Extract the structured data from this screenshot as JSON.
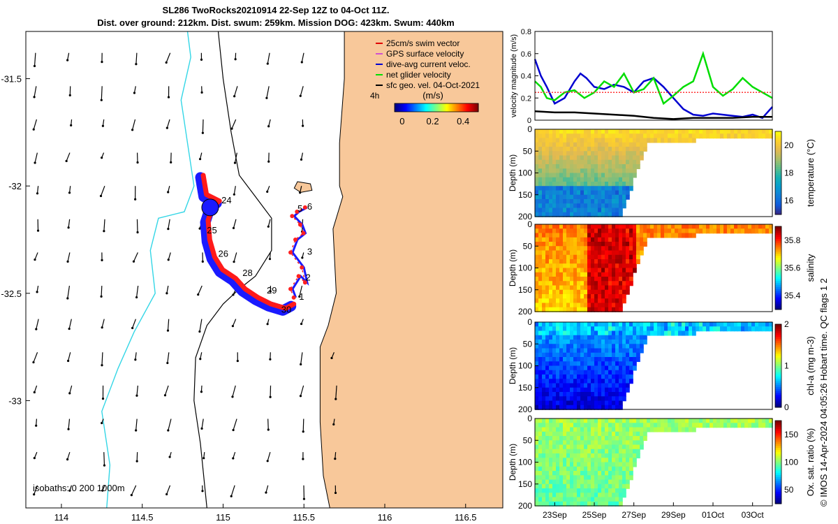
{
  "title_line1": "SL286 TwoRocks20210914 22-Sep 12Z to 04-Oct 11Z.",
  "title_line2": "Dist. over ground: 212km. Dist. swum: 259km. Mission DOG: 423km. Swum: 440km",
  "side_note": "© IMOS 14-Apr-2024 04:05:26 Hobart time. QC flags 1  2",
  "chart_data": [
    {
      "type": "map",
      "x_ticks": [
        "114",
        "114.5",
        "115",
        "115.5",
        "116",
        "116.5"
      ],
      "x_tick_values": [
        114,
        114.5,
        115,
        115.5,
        116,
        116.5
      ],
      "y_ticks": [
        "-31.5",
        "-32",
        "-32.5",
        "-33"
      ],
      "y_tick_values": [
        -31.5,
        -32,
        -32.5,
        -33
      ],
      "xlim": [
        113.78,
        116.73
      ],
      "ylim": [
        -33.5,
        -31.28
      ],
      "land_color": "#f8c89a",
      "legend": [
        {
          "label": "25cm/s swim vector",
          "color": "#e00000"
        },
        {
          "label": "GPS surface velocity",
          "color": "#d050d0"
        },
        {
          "label": "dive-avg current veloc.",
          "color": "#0000d0"
        },
        {
          "label": "net glider velocity",
          "color": "#00e000"
        },
        {
          "label": "sfc geo. vel. 04-Oct-2021",
          "color": "#000000"
        }
      ],
      "legend_symbol": "4h",
      "colorbar": {
        "label": "(m/s)",
        "ticks": [
          "0",
          "0.2",
          "0.4"
        ],
        "tick_values": [
          0,
          0.2,
          0.4
        ],
        "range": [
          -0.05,
          0.5
        ]
      },
      "isobaths_label": "isobaths: 0   200  1000m",
      "track": [
        [
          115.45,
          -32.52
        ],
        [
          115.43,
          -32.48
        ],
        [
          115.48,
          -32.42
        ],
        [
          115.52,
          -32.45
        ],
        [
          115.5,
          -32.38
        ],
        [
          115.43,
          -32.31
        ],
        [
          115.46,
          -32.25
        ],
        [
          115.51,
          -32.22
        ],
        [
          115.49,
          -32.18
        ],
        [
          115.44,
          -32.14
        ],
        [
          115.47,
          -32.12
        ],
        [
          115.52,
          -32.1
        ]
      ],
      "main_track": [
        [
          115.42,
          -32.56
        ],
        [
          115.37,
          -32.58
        ],
        [
          115.28,
          -32.56
        ],
        [
          115.2,
          -32.53
        ],
        [
          115.12,
          -32.49
        ],
        [
          115.06,
          -32.44
        ],
        [
          115.02,
          -32.42
        ],
        [
          114.98,
          -32.4
        ],
        [
          114.93,
          -32.34
        ],
        [
          114.9,
          -32.26
        ],
        [
          114.89,
          -32.17
        ],
        [
          114.92,
          -32.1
        ],
        [
          114.96,
          -32.08
        ],
        [
          114.88,
          -32.05
        ],
        [
          114.86,
          -31.96
        ]
      ],
      "track_labels": [
        {
          "text": "1",
          "lon": 115.47,
          "lat": -32.53
        },
        {
          "text": "2",
          "lon": 115.51,
          "lat": -32.44
        },
        {
          "text": "3",
          "lon": 115.52,
          "lat": -32.32
        },
        {
          "text": "5",
          "lon": 115.46,
          "lat": -32.12
        },
        {
          "text": "6",
          "lon": 115.52,
          "lat": -32.11
        },
        {
          "text": "24",
          "lon": 114.99,
          "lat": -32.08
        },
        {
          "text": "25",
          "lon": 114.9,
          "lat": -32.22
        },
        {
          "text": "26",
          "lon": 114.97,
          "lat": -32.33
        },
        {
          "text": "28",
          "lon": 115.12,
          "lat": -32.42
        },
        {
          "text": "29",
          "lon": 115.27,
          "lat": -32.5
        },
        {
          "text": "30",
          "lon": 115.36,
          "lat": -32.59
        }
      ],
      "coast": [
        [
          115.75,
          -31.28
        ],
        [
          115.75,
          -31.5
        ],
        [
          115.72,
          -31.8
        ],
        [
          115.72,
          -32.0
        ],
        [
          115.74,
          -32.05
        ],
        [
          115.68,
          -32.2
        ],
        [
          115.7,
          -32.5
        ],
        [
          115.65,
          -32.65
        ],
        [
          115.6,
          -32.75
        ],
        [
          115.6,
          -33.1
        ],
        [
          115.62,
          -33.35
        ],
        [
          115.66,
          -33.5
        ]
      ],
      "island": [
        [
          115.46,
          -31.98
        ],
        [
          115.54,
          -31.99
        ],
        [
          115.55,
          -32.02
        ],
        [
          115.48,
          -32.03
        ],
        [
          115.44,
          -32.01
        ]
      ],
      "isobath_200": [
        [
          114.97,
          -31.28
        ],
        [
          115.0,
          -31.5
        ],
        [
          115.05,
          -31.75
        ],
        [
          115.1,
          -31.95
        ],
        [
          115.2,
          -32.05
        ],
        [
          115.3,
          -32.15
        ],
        [
          115.3,
          -32.3
        ],
        [
          115.2,
          -32.42
        ],
        [
          115.1,
          -32.48
        ],
        [
          115.0,
          -32.55
        ],
        [
          114.9,
          -32.65
        ],
        [
          114.83,
          -32.8
        ],
        [
          114.82,
          -33.0
        ],
        [
          114.86,
          -33.2
        ],
        [
          114.9,
          -33.5
        ]
      ],
      "isobath_1000": [
        [
          114.78,
          -31.28
        ],
        [
          114.8,
          -31.4
        ],
        [
          114.74,
          -31.6
        ],
        [
          114.78,
          -31.8
        ],
        [
          114.82,
          -32.0
        ],
        [
          114.76,
          -32.12
        ],
        [
          114.6,
          -32.15
        ],
        [
          114.55,
          -32.3
        ],
        [
          114.58,
          -32.5
        ],
        [
          114.45,
          -32.68
        ],
        [
          114.35,
          -32.85
        ],
        [
          114.25,
          -33.05
        ],
        [
          114.3,
          -33.3
        ],
        [
          114.28,
          -33.5
        ]
      ]
    },
    {
      "type": "line",
      "ylabel": "velocity magnitude (m/s)",
      "ylim": [
        0,
        0.8
      ],
      "y_ticks": [
        "0",
        "0.2",
        "0.4",
        "0.6",
        "0.8"
      ],
      "y_tick_values": [
        0,
        0.2,
        0.4,
        0.6,
        0.8
      ],
      "xlim": [
        0,
        12
      ],
      "series": [
        {
          "color": "#0000d0",
          "x": [
            0,
            0.3,
            0.6,
            1,
            1.5,
            2,
            2.3,
            2.6,
            3,
            3.5,
            4,
            4.5,
            5,
            5.5,
            6,
            6.5,
            7,
            7.5,
            8,
            8.5,
            9,
            9.5,
            10,
            10.5,
            11,
            11.5,
            12
          ],
          "y": [
            0.55,
            0.4,
            0.3,
            0.15,
            0.2,
            0.35,
            0.42,
            0.38,
            0.3,
            0.28,
            0.32,
            0.3,
            0.25,
            0.35,
            0.38,
            0.3,
            0.2,
            0.1,
            0.05,
            0.04,
            0.06,
            0.05,
            0.04,
            0.03,
            0.05,
            0.02,
            0.12
          ]
        },
        {
          "color": "#00dd00",
          "x": [
            0,
            0.3,
            0.6,
            1,
            1.5,
            2,
            2.5,
            3,
            3.5,
            4,
            4.5,
            5,
            5.5,
            6,
            6.5,
            7,
            7.5,
            8,
            8.5,
            9,
            9.5,
            10,
            10.5,
            11,
            11.5,
            12
          ],
          "y": [
            0.35,
            0.3,
            0.2,
            0.18,
            0.25,
            0.27,
            0.2,
            0.25,
            0.35,
            0.3,
            0.42,
            0.25,
            0.28,
            0.38,
            0.15,
            0.22,
            0.3,
            0.35,
            0.6,
            0.3,
            0.22,
            0.28,
            0.38,
            0.3,
            0.25,
            0.2
          ]
        },
        {
          "color": "#000000",
          "x": [
            0,
            1,
            2,
            3,
            4,
            5,
            6,
            7,
            8,
            9,
            10,
            11,
            12
          ],
          "y": [
            0.08,
            0.07,
            0.07,
            0.06,
            0.05,
            0.04,
            0.02,
            0.01,
            0.02,
            0.02,
            0.02,
            0.03,
            0.03
          ]
        },
        {
          "color": "#ff3333",
          "x": [
            0,
            12
          ],
          "y": [
            0.25,
            0.25
          ]
        }
      ]
    },
    {
      "type": "heatmap",
      "name_key": "temperature",
      "ylabel": "Depth (m)",
      "ylim": [
        0,
        200
      ],
      "y_ticks": [
        "0",
        "50",
        "100",
        "150",
        "200"
      ],
      "y_tick_values": [
        0,
        50,
        100,
        150,
        200
      ],
      "colorbar_label": "temperature (°C)",
      "colorbar_ticks": [
        "16",
        "18",
        "20"
      ],
      "colorbar_tick_values": [
        16,
        18,
        20
      ],
      "crange": [
        15,
        21
      ],
      "colormap": "parula",
      "surface": 20.5,
      "deep": 17.0
    },
    {
      "type": "heatmap",
      "name_key": "salinity",
      "ylabel": "Depth (m)",
      "ylim": [
        0,
        200
      ],
      "y_ticks": [
        "0",
        "50",
        "100",
        "150",
        "200"
      ],
      "y_tick_values": [
        0,
        50,
        100,
        150,
        200
      ],
      "colorbar_label": "salinity",
      "colorbar_ticks": [
        "35.4",
        "35.6",
        "35.8"
      ],
      "colorbar_tick_values": [
        35.4,
        35.6,
        35.8
      ],
      "crange": [
        35.3,
        35.9
      ],
      "colormap": "jet",
      "surface": 35.75,
      "deep": 35.7
    },
    {
      "type": "heatmap",
      "name_key": "chla",
      "ylabel": "Depth (m)",
      "ylim": [
        0,
        200
      ],
      "y_ticks": [
        "0",
        "50",
        "100",
        "150",
        "200"
      ],
      "y_tick_values": [
        0,
        50,
        100,
        150,
        200
      ],
      "colorbar_label": "chl-a (mg m-3)",
      "colorbar_ticks": [
        "0",
        "1",
        "2"
      ],
      "colorbar_tick_values": [
        0,
        1,
        2
      ],
      "crange": [
        0,
        2
      ],
      "colormap": "jet",
      "surface": 0.6,
      "deep": 0.15
    },
    {
      "type": "heatmap",
      "name_key": "oxygen",
      "ylabel": "Depth (m)",
      "ylim": [
        0,
        200
      ],
      "y_ticks": [
        "0",
        "50",
        "100",
        "150",
        "200"
      ],
      "y_tick_values": [
        0,
        50,
        100,
        150,
        200
      ],
      "colorbar_label": "Ox. sat. ratio (%)",
      "colorbar_ticks": [
        "50",
        "100",
        "150"
      ],
      "colorbar_tick_values": [
        50,
        100,
        150
      ],
      "crange": [
        25,
        175
      ],
      "colormap": "jet",
      "surface": 105,
      "deep": 95,
      "x_ticks": [
        "23Sep",
        "25Sep",
        "27Sep",
        "29Sep",
        "01Oct",
        "03Oct"
      ],
      "x_tick_values": [
        1,
        3,
        5,
        7,
        9,
        11
      ]
    }
  ]
}
